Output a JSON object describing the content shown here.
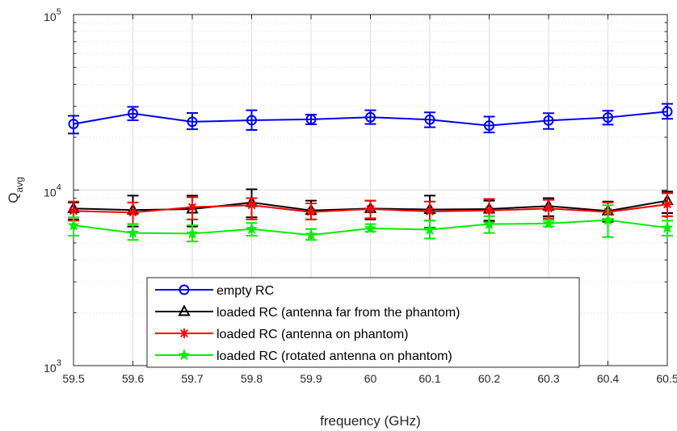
{
  "chart_data": {
    "type": "line",
    "title": "",
    "xlabel": "frequency (GHz)",
    "ylabel_main": "Q",
    "ylabel_sub": "avg",
    "x": [
      59.5,
      59.6,
      59.7,
      59.8,
      59.9,
      60.0,
      60.1,
      60.2,
      60.3,
      60.4,
      60.5
    ],
    "x_tick_labels": [
      "59.5",
      "59.6",
      "59.7",
      "59.8",
      "59.9",
      "60",
      "60.1",
      "60.2",
      "60.3",
      "60.4",
      "60.5"
    ],
    "xlim": [
      59.5,
      60.5
    ],
    "ylim": [
      1000,
      100000
    ],
    "yscale": "log",
    "y_ticks": [
      {
        "value": 1000,
        "base": "10",
        "exp": "3"
      },
      {
        "value": 10000,
        "base": "10",
        "exp": "4"
      },
      {
        "value": 100000,
        "base": "10",
        "exp": "5"
      }
    ],
    "grid": true,
    "legend_position": "bottom-center",
    "series": [
      {
        "name": "empty RC",
        "color": "#0000ee",
        "marker": "circle",
        "values": [
          23800,
          27300,
          24500,
          25000,
          25300,
          26000,
          25200,
          23300,
          24900,
          25900,
          28000
        ],
        "err_low": [
          21000,
          25000,
          22200,
          22000,
          23700,
          23800,
          22800,
          21300,
          22300,
          23600,
          25500
        ],
        "err_high": [
          26500,
          29800,
          27500,
          28500,
          26900,
          28500,
          27700,
          26200,
          27400,
          28300,
          31000
        ]
      },
      {
        "name": "loaded RC (antenna far from the phantom)",
        "color": "#000000",
        "marker": "triangle",
        "values": [
          7850,
          7700,
          7800,
          8500,
          7650,
          7850,
          7750,
          7800,
          8100,
          7600,
          8700
        ],
        "err_low": [
          6800,
          6200,
          6200,
          7000,
          6800,
          6800,
          6100,
          6700,
          7100,
          6600,
          7400
        ],
        "err_high": [
          8500,
          9300,
          9300,
          10100,
          8700,
          8700,
          9300,
          8700,
          9000,
          8600,
          9800
        ]
      },
      {
        "name": "loaded RC (antenna on phantom)",
        "color": "#ff0000",
        "marker": "asterisk",
        "values": [
          7600,
          7450,
          8000,
          8200,
          7500,
          7800,
          7550,
          7650,
          7850,
          7500,
          8300
        ],
        "err_low": [
          6700,
          6400,
          6800,
          6800,
          6800,
          6900,
          6700,
          6600,
          6900,
          6800,
          7100
        ],
        "err_high": [
          8600,
          8500,
          9100,
          9000,
          8400,
          8700,
          8600,
          8900,
          8800,
          8500,
          9600
        ]
      },
      {
        "name": "loaded RC (rotated antenna on phantom)",
        "color": "#00ee00",
        "marker": "star",
        "values": [
          6300,
          5700,
          5650,
          6000,
          5550,
          6050,
          5950,
          6400,
          6450,
          6750,
          6100
        ],
        "err_low": [
          5500,
          5200,
          5100,
          5500,
          5200,
          5800,
          5300,
          5700,
          6200,
          5400,
          5500
        ],
        "err_high": [
          7000,
          6400,
          6300,
          6500,
          6000,
          6400,
          6700,
          7100,
          6750,
          8200,
          6700
        ]
      }
    ]
  }
}
